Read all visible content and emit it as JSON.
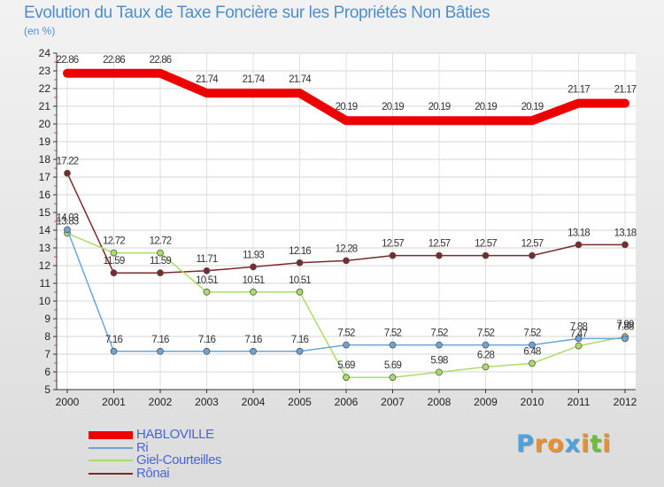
{
  "chart_data": {
    "type": "line",
    "title": "Evolution du Taux de Taxe Foncière sur les Propriétés Non Bâties",
    "unit_label": "(en %)",
    "xlabel": "",
    "ylabel": "",
    "ylim": [
      5,
      24
    ],
    "y_ticks": [
      "5",
      "6",
      "7",
      "8",
      "9",
      "10",
      "11",
      "12",
      "13",
      "14",
      "15",
      "16",
      "17",
      "18",
      "19",
      "20",
      "21",
      "22",
      "23",
      "24"
    ],
    "categories": [
      "2000",
      "2001",
      "2002",
      "2003",
      "2004",
      "2005",
      "2006",
      "2007",
      "2008",
      "2009",
      "2010",
      "2011",
      "2012"
    ],
    "series": [
      {
        "name": "HABLOVILLE",
        "color": "#ee0000",
        "values": [
          22.86,
          22.86,
          22.86,
          21.74,
          21.74,
          21.74,
          20.19,
          20.19,
          20.19,
          20.19,
          20.19,
          21.17,
          21.17
        ],
        "labels": [
          "22.86",
          "22.86",
          "22.86",
          "21.74",
          "21.74",
          "21.74",
          "20.19",
          "20.19",
          "20.19",
          "20.19",
          "20.19",
          "21.17",
          "21.17"
        ]
      },
      {
        "name": "Ri",
        "color": "#6aa5d6",
        "values": [
          14.03,
          7.16,
          7.16,
          7.16,
          7.16,
          7.16,
          7.52,
          7.52,
          7.52,
          7.52,
          7.52,
          7.88,
          7.88
        ],
        "labels": [
          "14.03",
          "7.16",
          "7.16",
          "7.16",
          "7.16",
          "7.16",
          "7.52",
          "7.52",
          "7.52",
          "7.52",
          "7.52",
          "7.88",
          "7.88"
        ]
      },
      {
        "name": "Giel-Courteilles",
        "color": "#a9dd66",
        "values": [
          13.83,
          12.72,
          12.72,
          10.51,
          10.51,
          10.51,
          5.69,
          5.69,
          5.98,
          6.28,
          6.48,
          7.47,
          7.99
        ],
        "labels": [
          "13.83",
          "12.72",
          "12.72",
          "10.51",
          "10.51",
          "10.51",
          "5.69",
          "5.69",
          "5.98",
          "6.28",
          "6.48",
          "7.47",
          "7.99"
        ]
      },
      {
        "name": "Rônai",
        "color": "#7a2a2a",
        "values": [
          17.22,
          11.59,
          11.59,
          11.71,
          11.93,
          12.16,
          12.28,
          12.57,
          12.57,
          12.57,
          12.57,
          13.18,
          13.18
        ],
        "labels": [
          "17.22",
          "11.59",
          "11.59",
          "11.71",
          "11.93",
          "12.16",
          "12.28",
          "12.57",
          "12.57",
          "12.57",
          "12.57",
          "13.18",
          "13.18"
        ]
      }
    ],
    "legend": {
      "position": "bottom-left",
      "items": [
        "HABLOVILLE",
        "Ri",
        "Giel-Courteilles",
        "Rônai"
      ]
    }
  },
  "brand": {
    "letters": [
      "P",
      "r",
      "o",
      "x",
      "i",
      "t",
      "i"
    ],
    "colors": [
      "#4da3dd",
      "#e8902c",
      "#e8902c",
      "#4da3dd",
      "#e8902c",
      "#6cbf3a",
      "#e8902c"
    ]
  }
}
